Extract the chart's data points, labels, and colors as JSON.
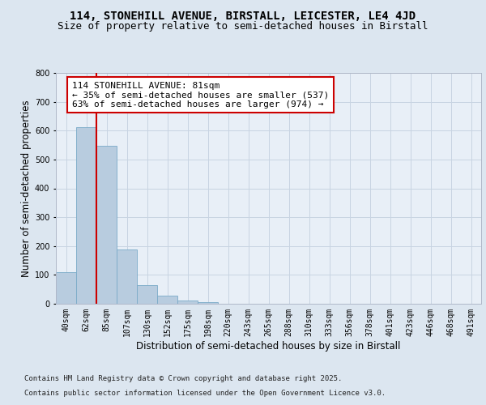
{
  "title": "114, STONEHILL AVENUE, BIRSTALL, LEICESTER, LE4 4JD",
  "subtitle": "Size of property relative to semi-detached houses in Birstall",
  "xlabel": "Distribution of semi-detached houses by size in Birstall",
  "ylabel": "Number of semi-detached properties",
  "bin_labels": [
    "40sqm",
    "62sqm",
    "85sqm",
    "107sqm",
    "130sqm",
    "152sqm",
    "175sqm",
    "198sqm",
    "220sqm",
    "243sqm",
    "265sqm",
    "288sqm",
    "310sqm",
    "333sqm",
    "356sqm",
    "378sqm",
    "401sqm",
    "423sqm",
    "446sqm",
    "468sqm",
    "491sqm"
  ],
  "bar_values": [
    110,
    612,
    547,
    188,
    65,
    28,
    10,
    5,
    0,
    0,
    0,
    0,
    0,
    0,
    0,
    0,
    0,
    0,
    0,
    0,
    0
  ],
  "bar_color": "#b8ccdf",
  "bar_edge_color": "#7aaac8",
  "vline_x": 1.5,
  "vline_color": "#cc0000",
  "annotation_text": "114 STONEHILL AVENUE: 81sqm\n← 35% of semi-detached houses are smaller (537)\n63% of semi-detached houses are larger (974) →",
  "annotation_box_color": "#ffffff",
  "annotation_box_edge": "#cc0000",
  "ylim": [
    0,
    800
  ],
  "yticks": [
    0,
    100,
    200,
    300,
    400,
    500,
    600,
    700,
    800
  ],
  "bg_color": "#dce6f0",
  "plot_bg_color": "#e8eff7",
  "footer_line1": "Contains HM Land Registry data © Crown copyright and database right 2025.",
  "footer_line2": "Contains public sector information licensed under the Open Government Licence v3.0.",
  "title_fontsize": 10,
  "subtitle_fontsize": 9,
  "axis_label_fontsize": 8.5,
  "tick_fontsize": 7,
  "annotation_fontsize": 8,
  "footer_fontsize": 6.5
}
